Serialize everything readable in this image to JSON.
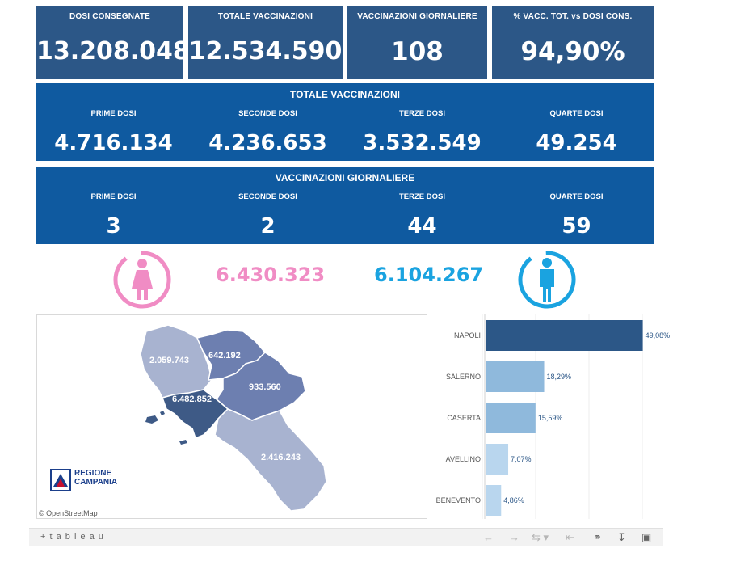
{
  "kpis": [
    {
      "label": "DOSI  CONSEGNATE",
      "value": "13.208.048"
    },
    {
      "label": "TOTALE VACCINAZIONI",
      "value": "12.534.590"
    },
    {
      "label": "VACCINAZIONI GIORNALIERE",
      "value": "108"
    },
    {
      "label": "% VACC. TOT. vs DOSI CONS.",
      "value": "94,90%"
    }
  ],
  "totale": {
    "title": "TOTALE VACCINAZIONI",
    "cols": [
      {
        "label": "PRIME DOSI",
        "value": "4.716.134"
      },
      {
        "label": "SECONDE DOSI",
        "value": "4.236.653"
      },
      {
        "label": "TERZE DOSI",
        "value": "3.532.549"
      },
      {
        "label": "QUARTE DOSI",
        "value": "49.254"
      }
    ]
  },
  "giornaliere": {
    "title": "VACCINAZIONI GIORNALIERE",
    "cols": [
      {
        "label": "PRIME DOSI",
        "value": "3"
      },
      {
        "label": "SECONDE DOSI",
        "value": "2"
      },
      {
        "label": "TERZE DOSI",
        "value": "44"
      },
      {
        "label": "QUARTE DOSI",
        "value": "59"
      }
    ]
  },
  "gender": {
    "female_value": "6.430.323",
    "male_value": "6.104.267",
    "female_color": "#f08cc4",
    "male_color": "#1aa3e0"
  },
  "map": {
    "regions": [
      {
        "name": "caserta",
        "value": "2.059.743",
        "color": "#a8b3d0"
      },
      {
        "name": "benevento",
        "value": "642.192",
        "color": "#6d7fb0"
      },
      {
        "name": "avellino",
        "value": "933.560",
        "color": "#6d7fb0"
      },
      {
        "name": "napoli",
        "value": "6.482.852",
        "color": "#3e5a86"
      },
      {
        "name": "salerno",
        "value": "2.416.243",
        "color": "#a8b3d0"
      }
    ],
    "logo_line1": "REGIONE",
    "logo_line2": "CAMPANIA",
    "attribution": "© OpenStreetMap"
  },
  "chart_data": {
    "type": "bar",
    "orientation": "horizontal",
    "categories": [
      "NAPOLI",
      "SALERNO",
      "CASERTA",
      "AVELLINO",
      "BENEVENTO"
    ],
    "values": [
      49.08,
      18.29,
      15.59,
      7.07,
      4.86
    ],
    "value_labels": [
      "49,08%",
      "18,29%",
      "15,59%",
      "7,07%",
      "4,86%"
    ],
    "colors": [
      "#2c5787",
      "#8fb9dc",
      "#8fb9dc",
      "#b9d6ee",
      "#b9d6ee"
    ],
    "xlim": [
      0,
      60
    ]
  },
  "toolbar": {
    "brand": "+ t a b l e a u"
  }
}
